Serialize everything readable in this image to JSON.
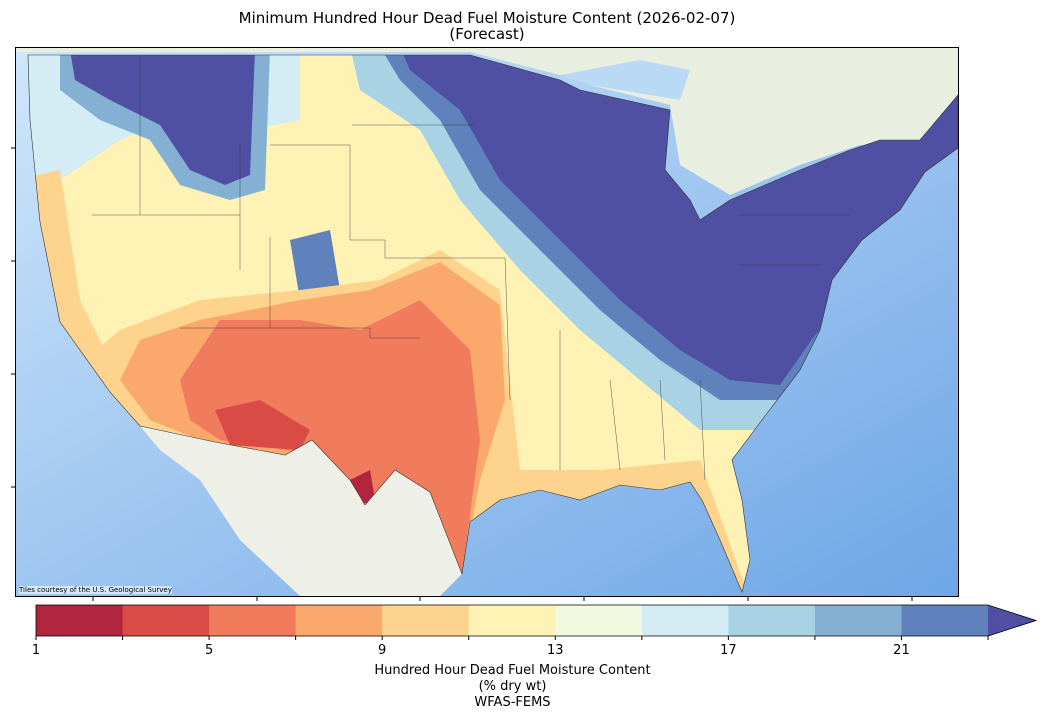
{
  "title": {
    "line1": "Minimum Hundred Hour Dead Fuel Moisture Content (2026-02-07)",
    "line2": "(Forecast)"
  },
  "map": {
    "region": "Contiguous United States",
    "basemap_attribution": "Tiles courtesy of the U.S. Geological Survey",
    "colors": {
      "ocean": "#a9cff3",
      "land": "#eef0e8",
      "water_lakes": "#b9d9f5"
    }
  },
  "colorbar": {
    "boundaries": [
      1,
      3,
      5,
      7,
      9,
      11,
      13,
      15,
      17,
      19,
      21,
      23
    ],
    "colors": [
      "#b2253f",
      "#d94b45",
      "#f07b5d",
      "#fba86c",
      "#fed38e",
      "#fef3b4",
      "#f2f9df",
      "#d4edf4",
      "#a9d2e5",
      "#84b1d3",
      "#5f81bc"
    ],
    "extend_color": "#4f4fa3",
    "extend": "max",
    "tick_labels": [
      "1",
      "5",
      "9",
      "13",
      "17",
      "21"
    ],
    "label_line1": "Hundred Hour Dead Fuel Moisture Content",
    "label_line2": "(% dry wt)",
    "label_line3": "WFAS-FEMS"
  }
}
